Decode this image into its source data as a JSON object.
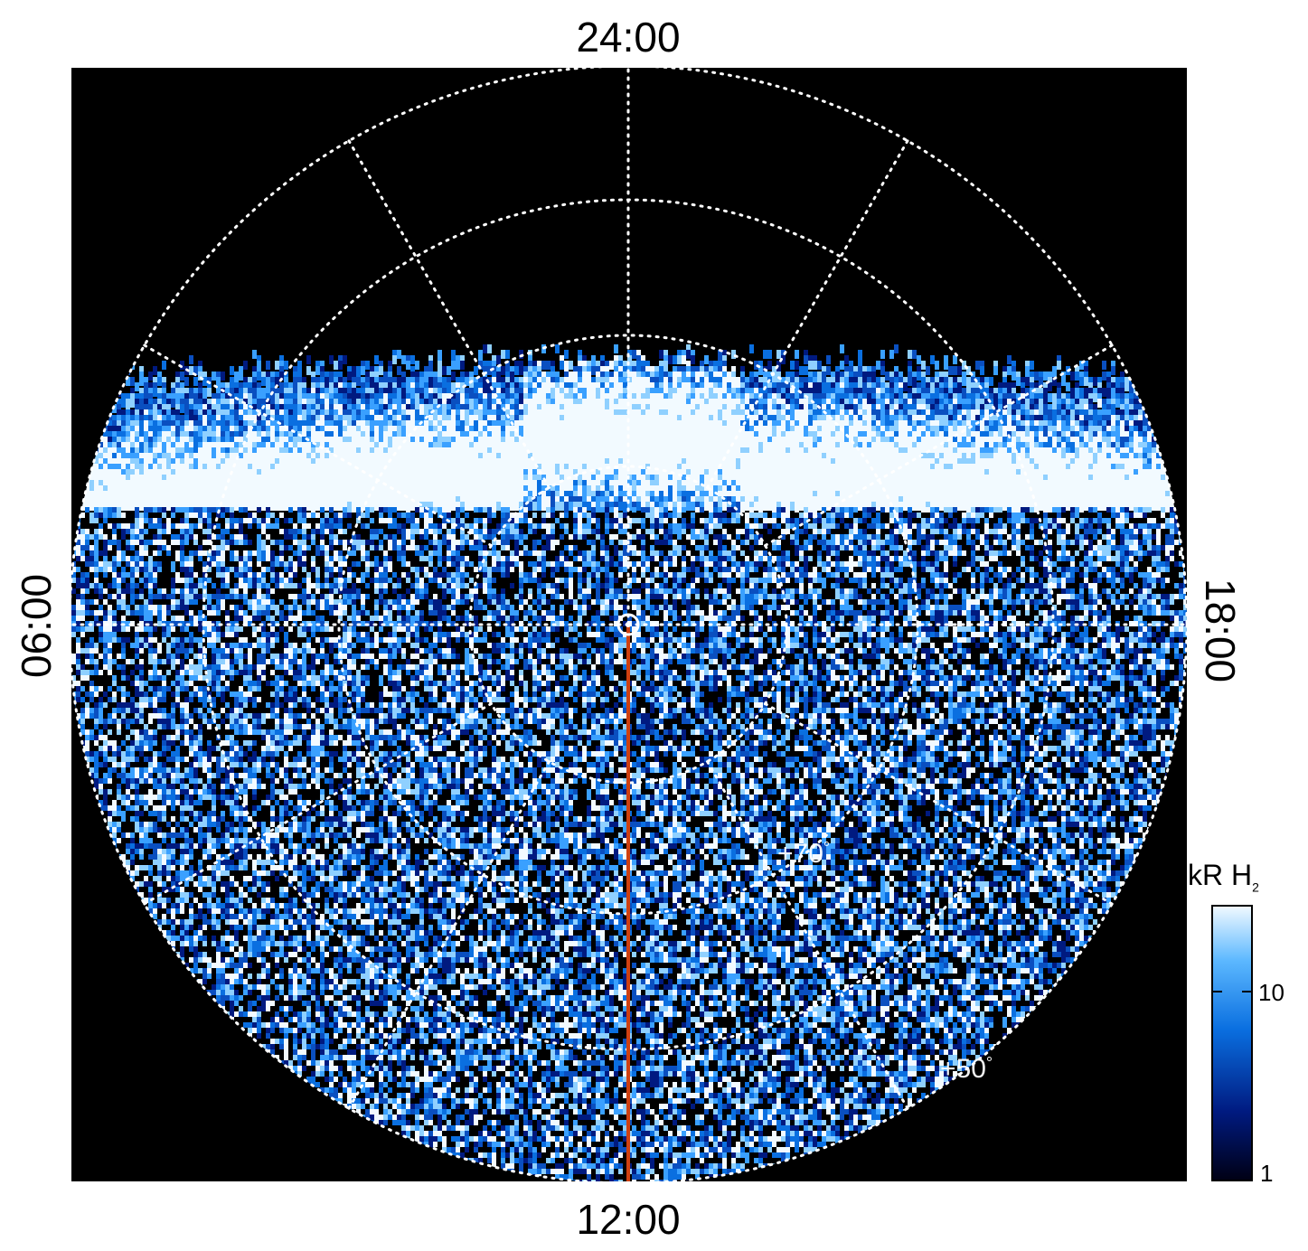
{
  "plot": {
    "title_top": "24:00",
    "title_bottom": "12:00",
    "title_left": "06:00",
    "title_right": "18:00",
    "lat_labels": [
      {
        "text": "+70",
        "deg": "°"
      },
      {
        "text": "+50",
        "deg": "°"
      }
    ]
  },
  "colorbar": {
    "unit_main": "kR H",
    "unit_sub": "2",
    "ticks": [
      "10",
      "1"
    ],
    "scale": "log",
    "range": [
      1,
      30
    ],
    "colors": [
      "#000014",
      "#001a80",
      "#0a6fe0",
      "#5cb8ff",
      "#e8f6ff"
    ]
  },
  "colors": {
    "background": "#000000",
    "grid": "#ffffff",
    "meridian_line": "#d04010"
  }
}
